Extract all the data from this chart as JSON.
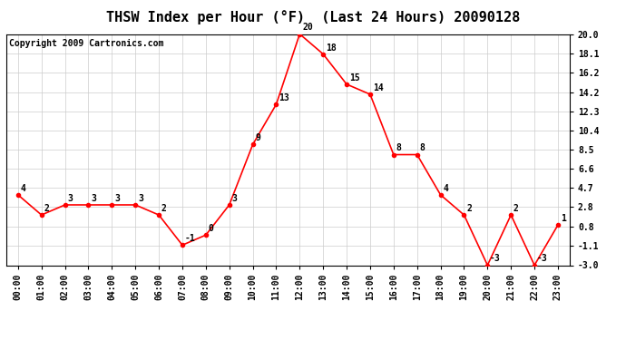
{
  "title": "THSW Index per Hour (°F)  (Last 24 Hours) 20090128",
  "copyright": "Copyright 2009 Cartronics.com",
  "hours": [
    "00:00",
    "01:00",
    "02:00",
    "03:00",
    "04:00",
    "05:00",
    "06:00",
    "07:00",
    "08:00",
    "09:00",
    "10:00",
    "11:00",
    "12:00",
    "13:00",
    "14:00",
    "15:00",
    "16:00",
    "17:00",
    "18:00",
    "19:00",
    "20:00",
    "21:00",
    "22:00",
    "23:00"
  ],
  "values": [
    4,
    2,
    3,
    3,
    3,
    3,
    2,
    -1,
    0,
    3,
    9,
    13,
    20,
    18,
    15,
    14,
    8,
    8,
    4,
    2,
    -3,
    2,
    -3,
    1
  ],
  "ylim": [
    -3.0,
    20.0
  ],
  "yticks": [
    -3.0,
    -1.1,
    0.8,
    2.8,
    4.7,
    6.6,
    8.5,
    10.4,
    12.3,
    14.2,
    16.2,
    18.1,
    20.0
  ],
  "ytick_labels": [
    "-3.0",
    "-1.1",
    "0.8",
    "2.8",
    "4.7",
    "6.6",
    "8.5",
    "10.4",
    "12.3",
    "14.2",
    "16.2",
    "18.1",
    "20.0"
  ],
  "line_color": "red",
  "marker_color": "red",
  "grid_color": "#cccccc",
  "bg_color": "white",
  "title_fontsize": 11,
  "copyright_fontsize": 7,
  "annotation_fontsize": 7,
  "tick_fontsize": 7
}
